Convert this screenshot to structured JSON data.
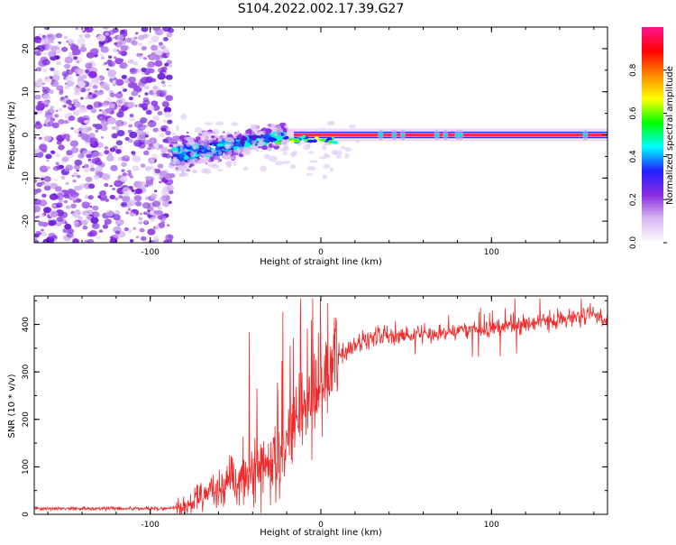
{
  "title": "S104.2022.002.17.39.G27",
  "chart_data": [
    {
      "type": "heatmap",
      "xlabel": "Height of straight line (km)",
      "ylabel": "Frequency (Hz)",
      "xlim": [
        -168,
        168
      ],
      "ylim": [
        -25,
        25
      ],
      "xticks": [
        -100,
        0,
        100
      ],
      "yticks": [
        20,
        10,
        0,
        -10,
        -20
      ],
      "colorbar": {
        "label": "Normalized spectral amplitude",
        "range": [
          0,
          1
        ],
        "ticks": [
          "0.0",
          "0.2",
          "0.4",
          "0.6",
          "0.8"
        ],
        "colors": [
          "#ffffff",
          "#d8b8f0",
          "#8a2be2",
          "#2020ff",
          "#00ffff",
          "#00ff00",
          "#ffff00",
          "#ff8800",
          "#ff0000",
          "#ff1493"
        ]
      },
      "features": {
        "noise_region_x": [
          -168,
          -88
        ],
        "noise_freq_range": [
          -25,
          25
        ],
        "transition_x": [
          -88,
          -20
        ],
        "transition_freq_start": -5,
        "transition_freq_end": 0,
        "carrier_x": [
          -20,
          168
        ],
        "carrier_freq": 0
      }
    },
    {
      "type": "line",
      "xlabel": "Height of straight line (km)",
      "ylabel": "SNR (10 * v/v)",
      "xlim": [
        -168,
        168
      ],
      "ylim": [
        0,
        460
      ],
      "xticks": [
        -100,
        0,
        100
      ],
      "yticks": [
        0,
        100,
        200,
        300,
        400
      ],
      "color": "#ee2a2a",
      "trend": {
        "x": [
          -168,
          -90,
          -80,
          -70,
          -60,
          -50,
          -40,
          -30,
          -25,
          -20,
          -10,
          0,
          10,
          20,
          30,
          40,
          60,
          80,
          100,
          120,
          140,
          160,
          168
        ],
        "y": [
          12,
          12,
          18,
          40,
          55,
          70,
          95,
          110,
          125,
          150,
          215,
          280,
          330,
          360,
          370,
          375,
          380,
          385,
          390,
          400,
          410,
          420,
          410
        ]
      }
    }
  ]
}
